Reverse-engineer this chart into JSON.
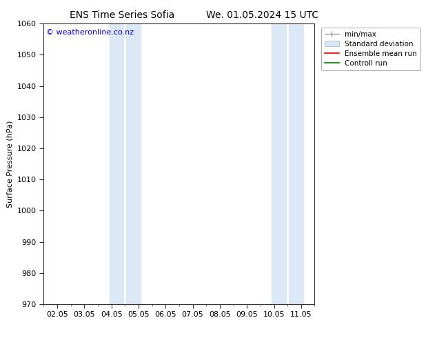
{
  "title_left": "ENS Time Series Sofia",
  "title_right": "We. 01.05.2024 15 UTC",
  "ylabel": "Surface Pressure (hPa)",
  "ylim": [
    970,
    1060
  ],
  "yticks": [
    970,
    980,
    990,
    1000,
    1010,
    1020,
    1030,
    1040,
    1050,
    1060
  ],
  "xtick_labels": [
    "02.05",
    "03.05",
    "04.05",
    "05.05",
    "06.05",
    "07.05",
    "08.05",
    "09.05",
    "10.05",
    "11.05"
  ],
  "xlim": [
    0,
    9
  ],
  "shaded_regions": [
    {
      "xmin": 2.0,
      "xmax": 2.5,
      "color": "#ddeeff"
    },
    {
      "xmin": 3.0,
      "xmax": 3.5,
      "color": "#ddeeff"
    },
    {
      "xmin": 8.0,
      "xmax": 8.5,
      "color": "#ddeeff"
    },
    {
      "xmin": 8.5,
      "xmax": 9.0,
      "color": "#ddeeff"
    }
  ],
  "watermark_text": "© weatheronline.co.nz",
  "watermark_color": "#0000cc",
  "bg_color": "#ffffff",
  "plot_bg_color": "#ffffff",
  "legend_entries": [
    {
      "label": "min/max"
    },
    {
      "label": "Standard deviation"
    },
    {
      "label": "Ensemble mean run"
    },
    {
      "label": "Controll run"
    }
  ],
  "title_fontsize": 10,
  "axis_label_fontsize": 8,
  "tick_fontsize": 8,
  "legend_fontsize": 7.5
}
